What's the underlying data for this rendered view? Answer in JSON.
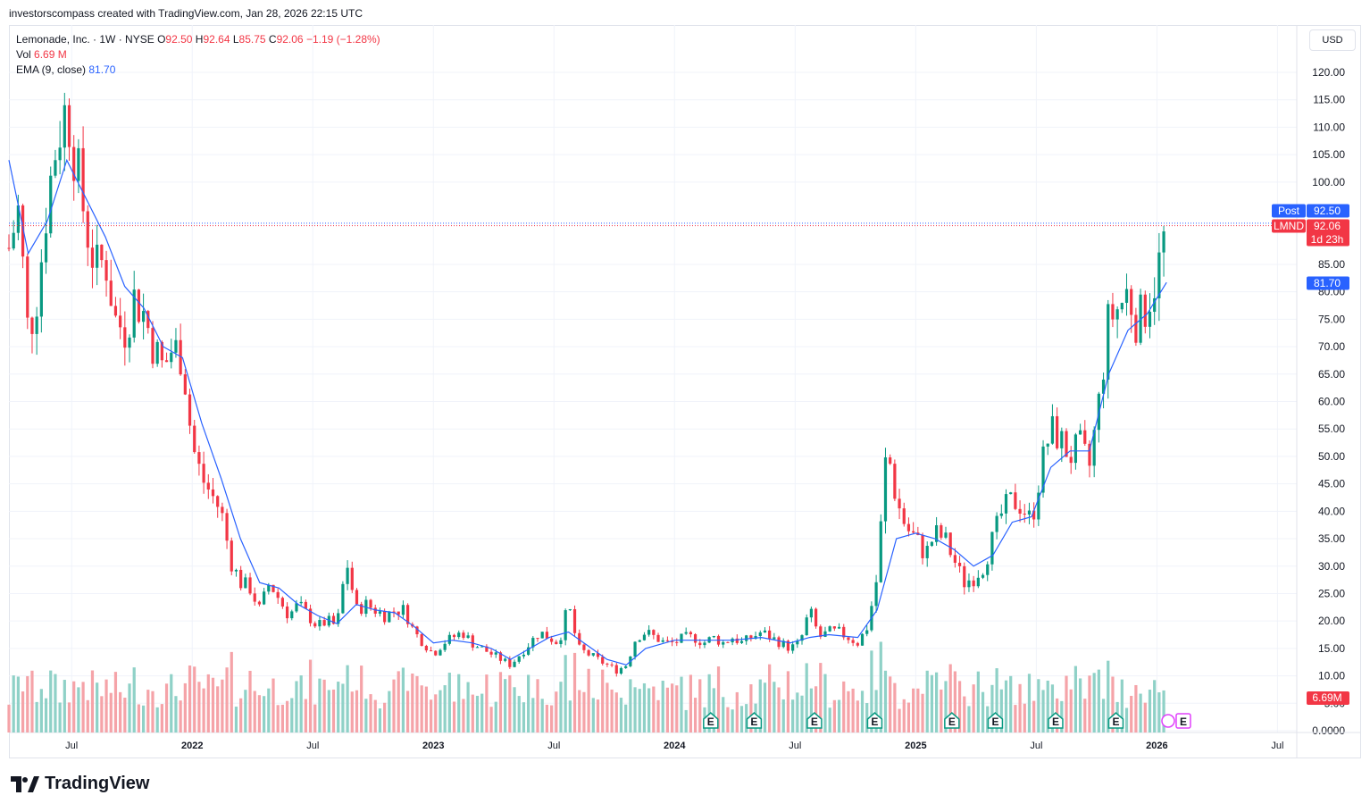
{
  "header": {
    "attribution": "investorscompass created with TradingView.com, Jan 28, 2026 22:15 UTC"
  },
  "legend": {
    "symbol_line": "Lemonade, Inc. · 1W · NYSE",
    "o_label": "O",
    "o_value": "92.50",
    "h_label": "H",
    "h_value": "92.64",
    "l_label": "L",
    "l_value": "85.75",
    "c_label": "C",
    "c_value": "92.06",
    "change": "−1.19 (−1.28%)",
    "vol_label": "Vol",
    "vol_value": "6.69 M",
    "ema_label": "EMA (9, close)",
    "ema_value": "81.70"
  },
  "currency": "USD",
  "footer": {
    "brand": "TradingView"
  },
  "colors": {
    "up": "#089981",
    "down": "#f23645",
    "vol_up": "#8fd1c7",
    "vol_down": "#f5a3a8",
    "ema": "#2962ff",
    "grid": "#f0f3fa",
    "post": "#2962ff",
    "last": "#f23645"
  },
  "chart_data": {
    "type": "candlestick",
    "symbol": "LMND",
    "interval": "1W",
    "y_ticks": [
      "120.00",
      "115.00",
      "110.00",
      "105.00",
      "100.00",
      "85.00",
      "80.00",
      "75.00",
      "70.00",
      "65.00",
      "60.00",
      "55.00",
      "50.00",
      "45.00",
      "40.00",
      "35.00",
      "30.00",
      "25.00",
      "20.00",
      "15.00",
      "10.00",
      "5.00",
      "0.0000"
    ],
    "ylim": [
      0,
      120
    ],
    "x_ticks": [
      {
        "label": "Jul",
        "t": 2021.5,
        "bold": false
      },
      {
        "label": "2022",
        "t": 2022.0,
        "bold": true
      },
      {
        "label": "Jul",
        "t": 2022.5,
        "bold": false
      },
      {
        "label": "2023",
        "t": 2023.0,
        "bold": true
      },
      {
        "label": "Jul",
        "t": 2023.5,
        "bold": false
      },
      {
        "label": "2024",
        "t": 2024.0,
        "bold": true
      },
      {
        "label": "Jul",
        "t": 2024.5,
        "bold": false
      },
      {
        "label": "2025",
        "t": 2025.0,
        "bold": true
      },
      {
        "label": "Jul",
        "t": 2025.5,
        "bold": false
      },
      {
        "label": "2026",
        "t": 2026.0,
        "bold": true
      },
      {
        "label": "Jul",
        "t": 2026.5,
        "bold": false
      }
    ],
    "xlim": [
      2021.24,
      2026.58
    ],
    "price_tags": [
      {
        "label": "Post",
        "value": "92.50",
        "kind": "post"
      },
      {
        "label": "LMND",
        "value": "92.06",
        "extra": "1d 23h",
        "kind": "last"
      },
      {
        "label": "",
        "value": "81.70",
        "kind": "ema"
      }
    ],
    "volume_tag": "6.69M",
    "earnings_marker": "E",
    "earnings_dates": [
      2024.15,
      2024.33,
      2024.58,
      2024.83,
      2025.15,
      2025.33,
      2025.58,
      2025.83
    ],
    "next_earnings_date": 2026.08,
    "price_path": [
      [
        2021.24,
        88
      ],
      [
        2021.28,
        95
      ],
      [
        2021.32,
        72
      ],
      [
        2021.36,
        80
      ],
      [
        2021.4,
        97
      ],
      [
        2021.44,
        108
      ],
      [
        2021.48,
        114
      ],
      [
        2021.52,
        103
      ],
      [
        2021.56,
        92
      ],
      [
        2021.6,
        84
      ],
      [
        2021.64,
        86
      ],
      [
        2021.68,
        75
      ],
      [
        2021.72,
        73
      ],
      [
        2021.76,
        79
      ],
      [
        2021.8,
        76
      ],
      [
        2021.84,
        70
      ],
      [
        2021.88,
        66
      ],
      [
        2021.92,
        70
      ],
      [
        2021.96,
        68
      ],
      [
        2022.0,
        52
      ],
      [
        2022.04,
        46
      ],
      [
        2022.08,
        43
      ],
      [
        2022.12,
        40
      ],
      [
        2022.16,
        31
      ],
      [
        2022.2,
        27
      ],
      [
        2022.24,
        26
      ],
      [
        2022.28,
        22
      ],
      [
        2022.32,
        27
      ],
      [
        2022.36,
        24
      ],
      [
        2022.4,
        21
      ],
      [
        2022.44,
        23
      ],
      [
        2022.48,
        21
      ],
      [
        2022.52,
        19
      ],
      [
        2022.56,
        20
      ],
      [
        2022.6,
        19
      ],
      [
        2022.64,
        31
      ],
      [
        2022.68,
        22
      ],
      [
        2022.72,
        23
      ],
      [
        2022.76,
        22
      ],
      [
        2022.8,
        21
      ],
      [
        2022.84,
        22
      ],
      [
        2022.88,
        22
      ],
      [
        2022.92,
        18
      ],
      [
        2022.96,
        16
      ],
      [
        2023.0,
        14
      ],
      [
        2023.04,
        16
      ],
      [
        2023.08,
        17
      ],
      [
        2023.12,
        18
      ],
      [
        2023.16,
        16
      ],
      [
        2023.2,
        15
      ],
      [
        2023.24,
        14
      ],
      [
        2023.28,
        13
      ],
      [
        2023.32,
        12
      ],
      [
        2023.36,
        14
      ],
      [
        2023.4,
        16
      ],
      [
        2023.44,
        18
      ],
      [
        2023.48,
        17
      ],
      [
        2023.52,
        16
      ],
      [
        2023.56,
        23
      ],
      [
        2023.6,
        15
      ],
      [
        2023.64,
        14
      ],
      [
        2023.68,
        13
      ],
      [
        2023.72,
        12
      ],
      [
        2023.76,
        11
      ],
      [
        2023.8,
        12
      ],
      [
        2023.84,
        17
      ],
      [
        2023.88,
        18
      ],
      [
        2023.92,
        17
      ],
      [
        2023.96,
        16
      ],
      [
        2024.0,
        16
      ],
      [
        2024.04,
        17
      ],
      [
        2024.08,
        17
      ],
      [
        2024.12,
        16
      ],
      [
        2024.16,
        17
      ],
      [
        2024.2,
        16
      ],
      [
        2024.24,
        17
      ],
      [
        2024.28,
        16
      ],
      [
        2024.32,
        17
      ],
      [
        2024.36,
        18
      ],
      [
        2024.4,
        17
      ],
      [
        2024.44,
        16
      ],
      [
        2024.48,
        15
      ],
      [
        2024.52,
        16
      ],
      [
        2024.56,
        22
      ],
      [
        2024.6,
        17
      ],
      [
        2024.64,
        18
      ],
      [
        2024.68,
        18
      ],
      [
        2024.72,
        17
      ],
      [
        2024.76,
        16
      ],
      [
        2024.8,
        19
      ],
      [
        2024.84,
        28
      ],
      [
        2024.88,
        52
      ],
      [
        2024.92,
        42
      ],
      [
        2024.96,
        37
      ],
      [
        2025.0,
        35
      ],
      [
        2025.04,
        32
      ],
      [
        2025.08,
        36
      ],
      [
        2025.12,
        35
      ],
      [
        2025.16,
        31
      ],
      [
        2025.2,
        27
      ],
      [
        2025.24,
        28
      ],
      [
        2025.28,
        30
      ],
      [
        2025.32,
        35
      ],
      [
        2025.36,
        40
      ],
      [
        2025.4,
        42
      ],
      [
        2025.44,
        41
      ],
      [
        2025.48,
        38
      ],
      [
        2025.52,
        48
      ],
      [
        2025.56,
        55
      ],
      [
        2025.6,
        53
      ],
      [
        2025.64,
        50
      ],
      [
        2025.68,
        52
      ],
      [
        2025.72,
        48
      ],
      [
        2025.76,
        60
      ],
      [
        2025.8,
        75
      ],
      [
        2025.84,
        77
      ],
      [
        2025.88,
        80
      ],
      [
        2025.92,
        74
      ],
      [
        2025.96,
        78
      ],
      [
        2026.0,
        83
      ],
      [
        2026.04,
        92
      ]
    ],
    "ema_path": [
      [
        2021.24,
        104
      ],
      [
        2021.32,
        87
      ],
      [
        2021.4,
        93
      ],
      [
        2021.48,
        104
      ],
      [
        2021.56,
        97
      ],
      [
        2021.64,
        90
      ],
      [
        2021.72,
        81
      ],
      [
        2021.8,
        77
      ],
      [
        2021.88,
        70
      ],
      [
        2021.96,
        68
      ],
      [
        2022.04,
        56
      ],
      [
        2022.12,
        46
      ],
      [
        2022.2,
        35
      ],
      [
        2022.28,
        27
      ],
      [
        2022.36,
        26
      ],
      [
        2022.44,
        23
      ],
      [
        2022.52,
        21
      ],
      [
        2022.6,
        19.5
      ],
      [
        2022.68,
        23
      ],
      [
        2022.76,
        22
      ],
      [
        2022.84,
        21.5
      ],
      [
        2022.92,
        19
      ],
      [
        2023.0,
        16
      ],
      [
        2023.08,
        16.5
      ],
      [
        2023.16,
        16
      ],
      [
        2023.24,
        15
      ],
      [
        2023.32,
        13
      ],
      [
        2023.4,
        15
      ],
      [
        2023.48,
        17
      ],
      [
        2023.56,
        18
      ],
      [
        2023.64,
        15.5
      ],
      [
        2023.72,
        13
      ],
      [
        2023.8,
        12
      ],
      [
        2023.88,
        15
      ],
      [
        2024.0,
        16.5
      ],
      [
        2024.12,
        16.5
      ],
      [
        2024.24,
        16.5
      ],
      [
        2024.36,
        17
      ],
      [
        2024.48,
        16
      ],
      [
        2024.56,
        17
      ],
      [
        2024.64,
        17.5
      ],
      [
        2024.76,
        17
      ],
      [
        2024.84,
        22
      ],
      [
        2024.92,
        35
      ],
      [
        2025.0,
        36
      ],
      [
        2025.08,
        35
      ],
      [
        2025.16,
        33
      ],
      [
        2025.24,
        30
      ],
      [
        2025.32,
        32
      ],
      [
        2025.4,
        38
      ],
      [
        2025.48,
        39
      ],
      [
        2025.56,
        48
      ],
      [
        2025.64,
        51
      ],
      [
        2025.72,
        51
      ],
      [
        2025.8,
        65
      ],
      [
        2025.88,
        73
      ],
      [
        2025.96,
        76
      ],
      [
        2026.04,
        81.7
      ]
    ]
  }
}
